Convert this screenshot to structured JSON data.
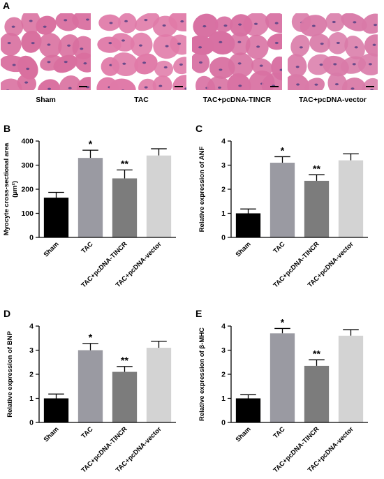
{
  "panel_a": {
    "letter": "A",
    "images": [
      {
        "label": "Sham",
        "tissue_color": "#d96f9f"
      },
      {
        "label": "TAC",
        "tissue_color": "#e07aa8"
      },
      {
        "label": "TAC+pcDNA-TINCR",
        "tissue_color": "#d870a2"
      },
      {
        "label": "TAC+pcDNA-vector",
        "tissue_color": "#d97aa8"
      }
    ]
  },
  "colors": {
    "bars": [
      "#000000",
      "#9a9aa2",
      "#7c7c7c",
      "#d3d3d3"
    ],
    "background_space": "#ffffff",
    "nucleus": "#6a4a8a"
  },
  "chart_data": [
    {
      "letter": "B",
      "type": "bar",
      "categories": [
        "Sham",
        "TAC",
        "TAC+pcDNA-TINCR",
        "TAC+pcDNA-vector"
      ],
      "values": [
        165,
        330,
        245,
        340
      ],
      "errors": [
        22,
        32,
        35,
        28
      ],
      "annotations": [
        "",
        "*",
        "**",
        ""
      ],
      "ylabel_lines": [
        "Myocyte cross-sectional area",
        "(μm²)"
      ],
      "ylim": [
        0,
        400
      ],
      "yticks": [
        "0",
        "100",
        "200",
        "300",
        "400"
      ]
    },
    {
      "letter": "C",
      "type": "bar",
      "categories": [
        "Sham",
        "TAC",
        "TAC+pcDNA-TINCR",
        "TAC+pcDNA-vector"
      ],
      "values": [
        1.0,
        3.1,
        2.35,
        3.2
      ],
      "errors": [
        0.18,
        0.25,
        0.25,
        0.27
      ],
      "annotations": [
        "",
        "*",
        "**",
        ""
      ],
      "ylabel_lines": [
        "Relative expression of  ANF"
      ],
      "ylim": [
        0,
        4
      ],
      "yticks": [
        "0",
        "1",
        "2",
        "3",
        "4"
      ]
    },
    {
      "letter": "D",
      "type": "bar",
      "categories": [
        "Sham",
        "TAC",
        "TAC+pcDNA-TINCR",
        "TAC+pcDNA-vector"
      ],
      "values": [
        1.0,
        3.0,
        2.1,
        3.1
      ],
      "errors": [
        0.18,
        0.28,
        0.22,
        0.27
      ],
      "annotations": [
        "",
        "*",
        "**",
        ""
      ],
      "ylabel_lines": [
        "Relative expression of  BNP"
      ],
      "ylim": [
        0,
        4
      ],
      "yticks": [
        "0",
        "1",
        "2",
        "3",
        "4"
      ]
    },
    {
      "letter": "E",
      "type": "bar",
      "categories": [
        "Sham",
        "TAC",
        "TAC+pcDNA-TINCR",
        "TAC+pcDNA-vector"
      ],
      "values": [
        1.0,
        3.7,
        2.35,
        3.6
      ],
      "errors": [
        0.15,
        0.2,
        0.25,
        0.25
      ],
      "annotations": [
        "",
        "*",
        "**",
        ""
      ],
      "ylabel_lines": [
        "Relative expression of  β-MHC"
      ],
      "ylim": [
        0,
        4
      ],
      "yticks": [
        "0",
        "1",
        "2",
        "3",
        "4"
      ]
    }
  ]
}
